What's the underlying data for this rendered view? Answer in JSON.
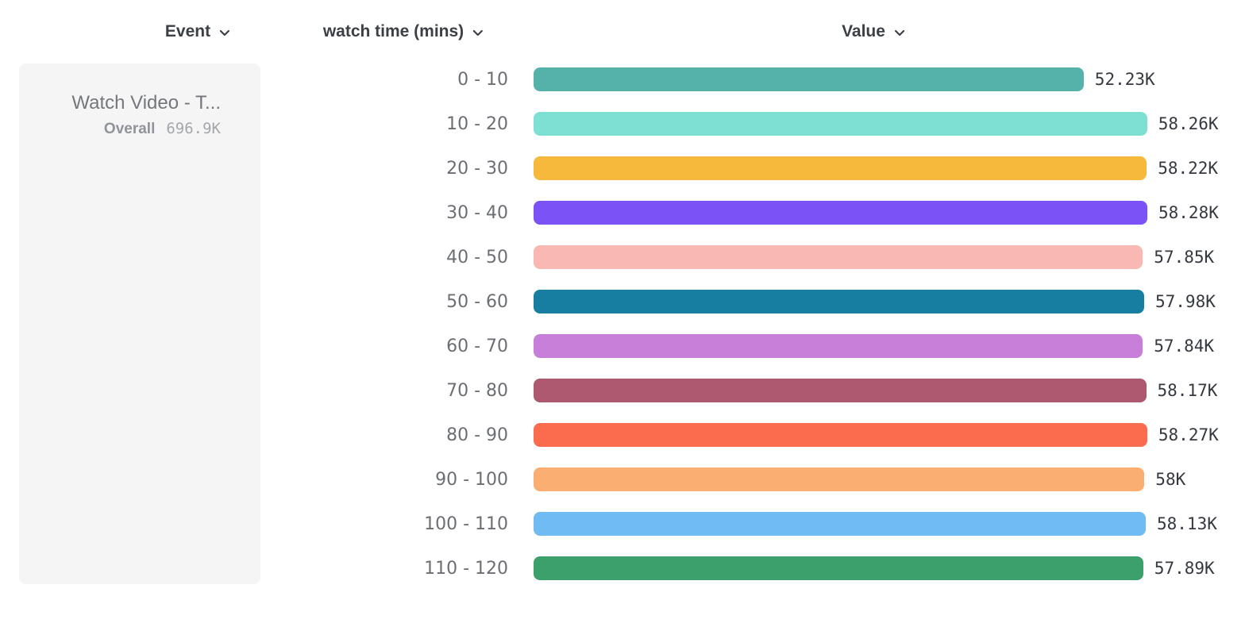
{
  "header": {
    "columns": [
      {
        "id": "event",
        "label": "Event"
      },
      {
        "id": "bucket",
        "label": "watch time (mins)"
      },
      {
        "id": "value",
        "label": "Value"
      }
    ]
  },
  "event_card": {
    "name": "Watch Video - T...",
    "overall_label": "Overall",
    "overall_value": "696.9K"
  },
  "icons": {
    "chevron": "chevron-down-icon"
  },
  "chart_data": {
    "type": "bar",
    "orientation": "horizontal",
    "title": "",
    "xlabel": "Value",
    "ylabel": "watch time (mins)",
    "xlim": [
      0,
      58280
    ],
    "grid": false,
    "categories": [
      "0 - 10",
      "10 - 20",
      "20 - 30",
      "30 - 40",
      "40 - 50",
      "50 - 60",
      "60 - 70",
      "70 - 80",
      "80 - 90",
      "90 - 100",
      "100 - 110",
      "110 - 120"
    ],
    "values": [
      52230,
      58260,
      58220,
      58280,
      57850,
      57980,
      57840,
      58170,
      58270,
      58000,
      58130,
      57890
    ],
    "value_labels": [
      "52.23K",
      "58.26K",
      "58.22K",
      "58.28K",
      "57.85K",
      "57.98K",
      "57.84K",
      "58.17K",
      "58.27K",
      "58K",
      "58.13K",
      "57.89K"
    ],
    "colors": [
      "#55B2AB",
      "#7DE0D2",
      "#F6B93B",
      "#7A52F5",
      "#F9B8B2",
      "#177EA1",
      "#C77FD9",
      "#AD5A70",
      "#FB6C4E",
      "#FBAE71",
      "#6FBBF2",
      "#3BA06C"
    ]
  }
}
